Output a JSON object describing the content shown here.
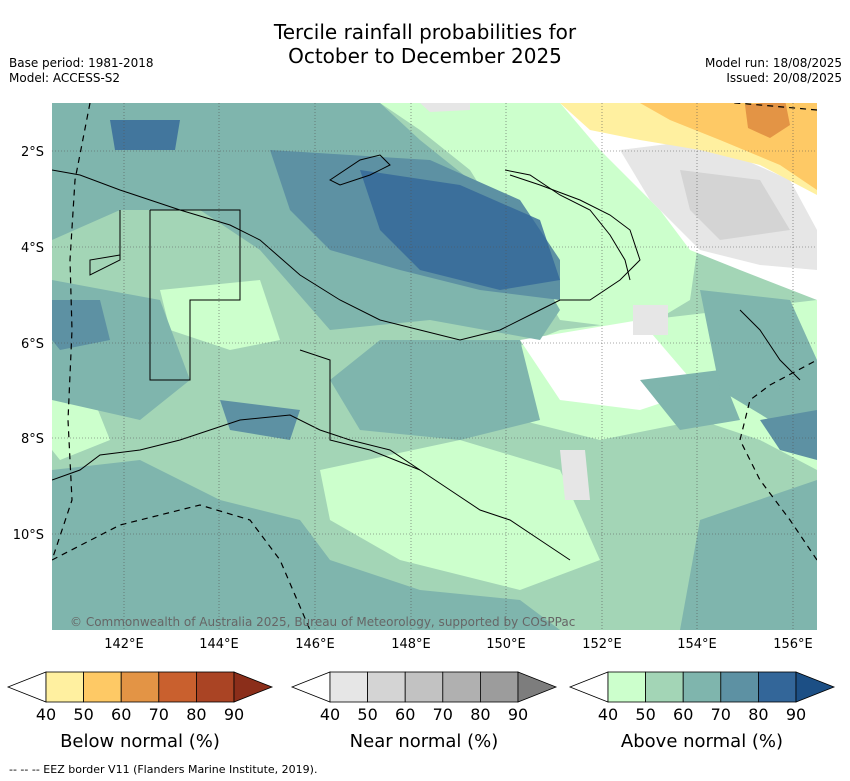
{
  "title_line1": "Tercile rainfall probabilities for",
  "title_line2": "October to December 2025",
  "base_period": "Base period: 1981-2018",
  "model": "Model: ACCESS-S2",
  "model_run": "Model run: 18/08/2025",
  "issued": "Issued: 20/08/2025",
  "copyright": "© Commonwealth of Australia 2025, Bureau of Meteorology, supported by COSPPac",
  "lat_labels": [
    "2°S",
    "4°S",
    "6°S",
    "8°S",
    "10°S"
  ],
  "lon_labels": [
    "142°E",
    "144°E",
    "146°E",
    "148°E",
    "150°E",
    "152°E",
    "154°E",
    "156°E"
  ],
  "colorbars": [
    {
      "label": "Below normal (%)",
      "ticks": [
        "40",
        "50",
        "60",
        "70",
        "80",
        "90"
      ],
      "colors": [
        "#ffffff",
        "#fff0a0",
        "#fec965",
        "#e39445",
        "#c9602e",
        "#aa4424",
        "#8b2e1a"
      ]
    },
    {
      "label": "Near normal (%)",
      "ticks": [
        "40",
        "50",
        "60",
        "70",
        "80",
        "90"
      ],
      "colors": [
        "#ffffff",
        "#e6e6e6",
        "#d4d4d4",
        "#c2c2c2",
        "#b0b0b0",
        "#9c9c9c",
        "#7d7d7d"
      ]
    },
    {
      "label": "Above normal (%)",
      "ticks": [
        "40",
        "50",
        "60",
        "70",
        "80",
        "90"
      ],
      "colors": [
        "#ffffff",
        "#ccffcc",
        "#a3d5b6",
        "#7fb5ad",
        "#5d91a3",
        "#336699",
        "#1c4f85"
      ]
    }
  ],
  "footer": "--  --  -- EEZ border V11 (Flanders Marine Institute, 2019)."
}
